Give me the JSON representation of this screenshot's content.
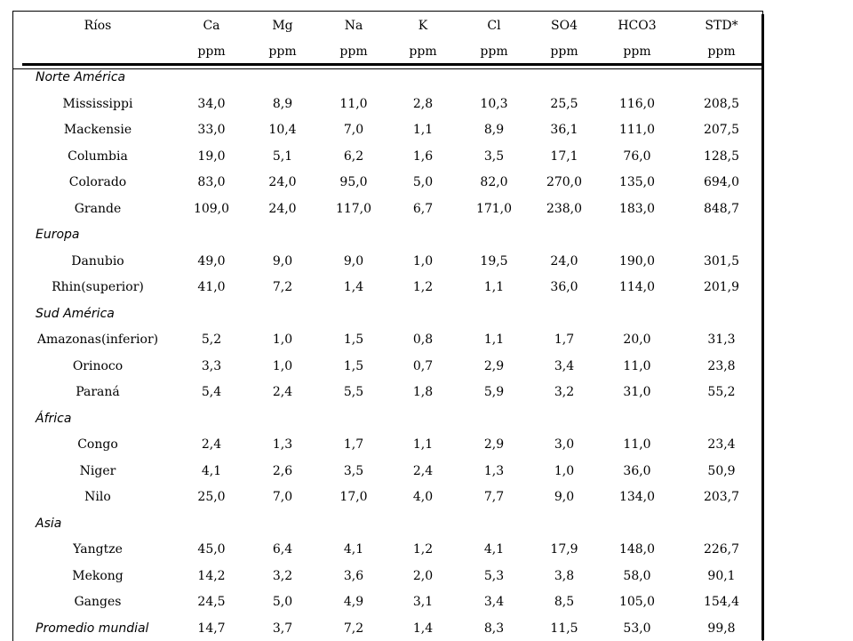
{
  "table": {
    "headers": [
      "Ríos",
      "Ca",
      "Mg",
      "Na",
      "K",
      "Cl",
      "SO4",
      "HCO3",
      "STD*"
    ],
    "units": [
      "",
      "ppm",
      "ppm",
      "ppm",
      "ppm",
      "ppm",
      "ppm",
      "ppm",
      "ppm"
    ],
    "rows": [
      {
        "type": "region",
        "name": "Norte América"
      },
      {
        "type": "data",
        "cells": [
          "Mississippi",
          "34,0",
          "8,9",
          "11,0",
          "2,8",
          "10,3",
          "25,5",
          "116,0",
          "208,5"
        ]
      },
      {
        "type": "data",
        "cells": [
          "Mackensie",
          "33,0",
          "10,4",
          "7,0",
          "1,1",
          "8,9",
          "36,1",
          "111,0",
          "207,5"
        ]
      },
      {
        "type": "data",
        "cells": [
          "Columbia",
          "19,0",
          "5,1",
          "6,2",
          "1,6",
          "3,5",
          "17,1",
          "76,0",
          "128,5"
        ]
      },
      {
        "type": "data",
        "cells": [
          "Colorado",
          "83,0",
          "24,0",
          "95,0",
          "5,0",
          "82,0",
          "270,0",
          "135,0",
          "694,0"
        ]
      },
      {
        "type": "data",
        "cells": [
          "Grande",
          "109,0",
          "24,0",
          "117,0",
          "6,7",
          "171,0",
          "238,0",
          "183,0",
          "848,7"
        ]
      },
      {
        "type": "region",
        "name": "Europa"
      },
      {
        "type": "data",
        "cells": [
          "Danubio",
          "49,0",
          "9,0",
          "9,0",
          "1,0",
          "19,5",
          "24,0",
          "190,0",
          "301,5"
        ]
      },
      {
        "type": "data",
        "cells": [
          "Rhin(superior)",
          "41,0",
          "7,2",
          "1,4",
          "1,2",
          "1,1",
          "36,0",
          "114,0",
          "201,9"
        ]
      },
      {
        "type": "region",
        "name": "Sud América"
      },
      {
        "type": "data",
        "cells": [
          "Amazonas(inferior)",
          "5,2",
          "1,0",
          "1,5",
          "0,8",
          "1,1",
          "1,7",
          "20,0",
          "31,3"
        ]
      },
      {
        "type": "data",
        "cells": [
          "Orinoco",
          "3,3",
          "1,0",
          "1,5",
          "0,7",
          "2,9",
          "3,4",
          "11,0",
          "23,8"
        ]
      },
      {
        "type": "data",
        "cells": [
          "Paraná",
          "5,4",
          "2,4",
          "5,5",
          "1,8",
          "5,9",
          "3,2",
          "31,0",
          "55,2"
        ]
      },
      {
        "type": "region",
        "name": "África"
      },
      {
        "type": "data",
        "cells": [
          "Congo",
          "2,4",
          "1,3",
          "1,7",
          "1,1",
          "2,9",
          "3,0",
          "11,0",
          "23,4"
        ]
      },
      {
        "type": "data",
        "cells": [
          "Niger",
          "4,1",
          "2,6",
          "3,5",
          "2,4",
          "1,3",
          "1,0",
          "36,0",
          "50,9"
        ]
      },
      {
        "type": "data",
        "cells": [
          "Nilo",
          "25,0",
          "7,0",
          "17,0",
          "4,0",
          "7,7",
          "9,0",
          "134,0",
          "203,7"
        ]
      },
      {
        "type": "region",
        "name": "Asia"
      },
      {
        "type": "data",
        "cells": [
          "Yangtze",
          "45,0",
          "6,4",
          "4,1",
          "1,2",
          "4,1",
          "17,9",
          "148,0",
          "226,7"
        ]
      },
      {
        "type": "data",
        "cells": [
          "Mekong",
          "14,2",
          "3,2",
          "3,6",
          "2,0",
          "5,3",
          "3,8",
          "58,0",
          "90,1"
        ]
      },
      {
        "type": "data",
        "cells": [
          "Ganges",
          "24,5",
          "5,0",
          "4,9",
          "3,1",
          "3,4",
          "8,5",
          "105,0",
          "154,4"
        ]
      },
      {
        "type": "summary",
        "cells": [
          "Promedio mundial",
          "14,7",
          "3,7",
          "7,2",
          "1,4",
          "8,3",
          "11,5",
          "53,0",
          "99,8"
        ]
      }
    ]
  }
}
